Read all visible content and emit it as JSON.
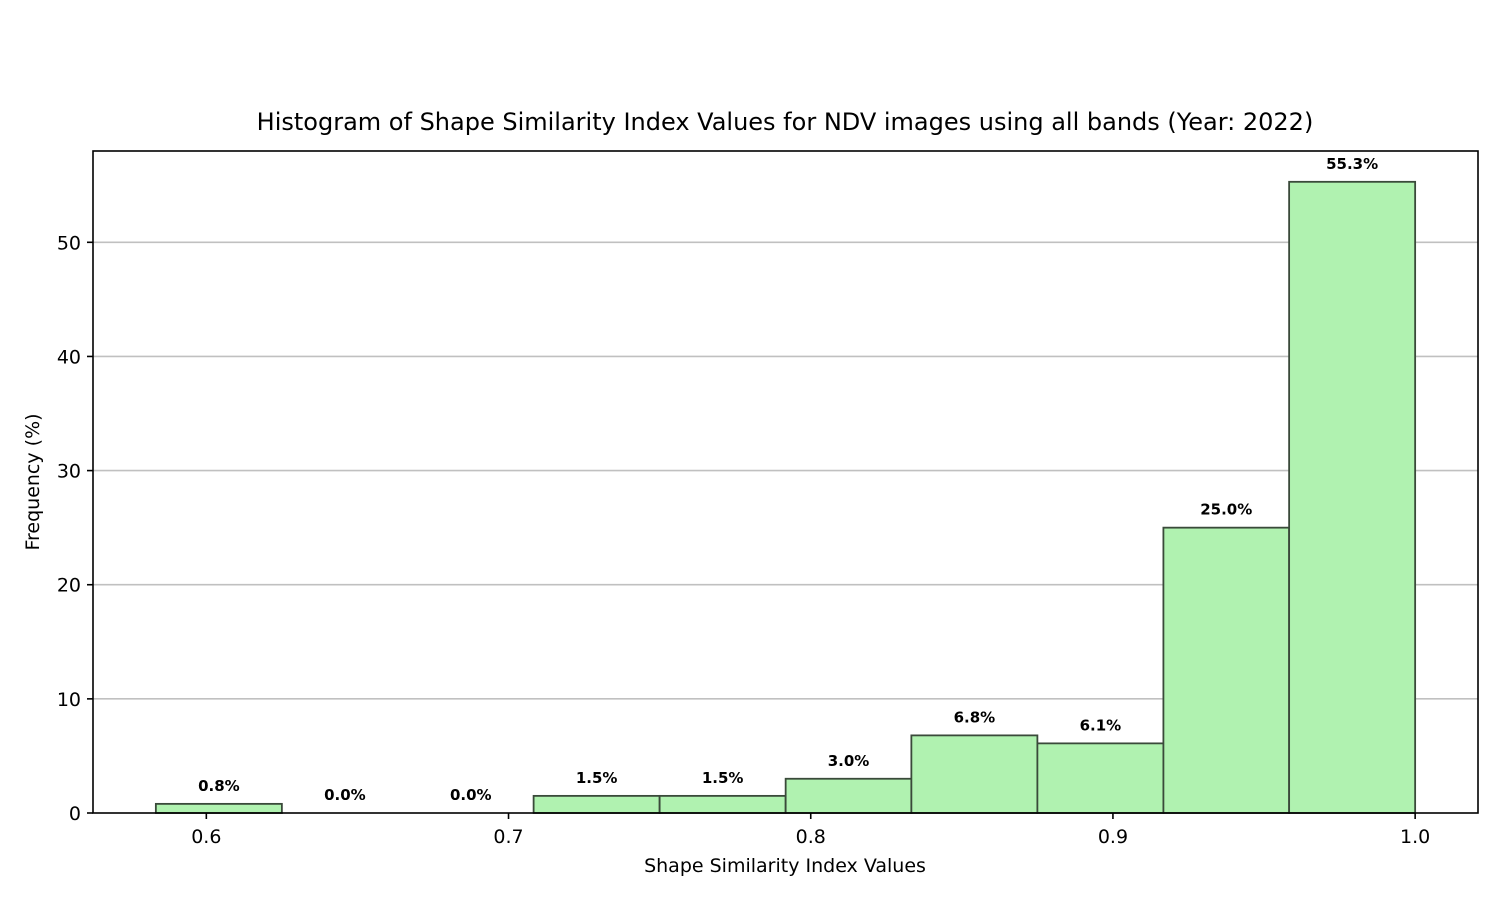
{
  "chart_data": {
    "type": "bar",
    "title": "Histogram of Shape Similarity Index Values for NDV images using all bands (Year: 2022)",
    "xlabel": "Shape Similarity Index Values",
    "ylabel": "Frequency (%)",
    "bins": [
      {
        "start": 0.5833,
        "end": 0.625,
        "value": 0.8,
        "label": "0.8%"
      },
      {
        "start": 0.625,
        "end": 0.6667,
        "value": 0.0,
        "label": "0.0%"
      },
      {
        "start": 0.6667,
        "end": 0.7083,
        "value": 0.0,
        "label": "0.0%"
      },
      {
        "start": 0.7083,
        "end": 0.75,
        "value": 1.5,
        "label": "1.5%"
      },
      {
        "start": 0.75,
        "end": 0.7917,
        "value": 1.5,
        "label": "1.5%"
      },
      {
        "start": 0.7917,
        "end": 0.8333,
        "value": 3.0,
        "label": "3.0%"
      },
      {
        "start": 0.8333,
        "end": 0.875,
        "value": 6.8,
        "label": "6.8%"
      },
      {
        "start": 0.875,
        "end": 0.9167,
        "value": 6.1,
        "label": "6.1%"
      },
      {
        "start": 0.9167,
        "end": 0.9583,
        "value": 25.0,
        "label": "25.0%"
      },
      {
        "start": 0.9583,
        "end": 1.0,
        "value": 55.3,
        "label": "55.3%"
      }
    ],
    "xticks": [
      "0.6",
      "0.7",
      "0.8",
      "0.9",
      "1.0"
    ],
    "yticks": [
      "0",
      "10",
      "20",
      "30",
      "40",
      "50"
    ],
    "xlim": [
      0.5625,
      1.0208
    ],
    "ylim": [
      0,
      58
    ],
    "grid": "y-axis horizontal lines",
    "bar_color": "#b0f2b0",
    "edge_color": "#3a4a3a"
  }
}
